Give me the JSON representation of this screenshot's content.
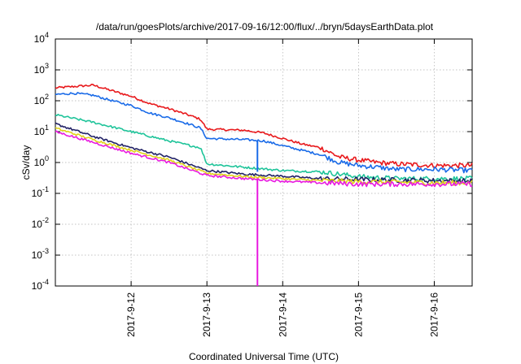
{
  "chart_data": {
    "type": "line",
    "title": "/data/run/goesPlots/archive/2017-09-16/12:00/flux/../bryn/5daysEarthData.plot",
    "xlabel": "Coordinated Universal Time (UTC)",
    "ylabel": "cSv/day",
    "yscale": "log",
    "ylim": [
      0.0001,
      10000
    ],
    "xlim": [
      "2017-09-11 00:00",
      "2017-09-16 12:00"
    ],
    "grid": true,
    "legend": "none",
    "y_ticks": [
      {
        "base": "10",
        "exp": "-4",
        "value": 0.0001
      },
      {
        "base": "10",
        "exp": "-3",
        "value": 0.001
      },
      {
        "base": "10",
        "exp": "-2",
        "value": 0.01
      },
      {
        "base": "10",
        "exp": "-1",
        "value": 0.1
      },
      {
        "base": "10",
        "exp": "0",
        "value": 1
      },
      {
        "base": "10",
        "exp": "1",
        "value": 10
      },
      {
        "base": "10",
        "exp": "2",
        "value": 100
      },
      {
        "base": "10",
        "exp": "3",
        "value": 1000
      },
      {
        "base": "10",
        "exp": "4",
        "value": 10000
      }
    ],
    "x_ticks": [
      {
        "label": "2017-9-12",
        "value": "2017-09-12 00:00"
      },
      {
        "label": "2017-9-13",
        "value": "2017-09-13 00:00"
      },
      {
        "label": "2017-9-14",
        "value": "2017-09-14 00:00"
      },
      {
        "label": "2017-9-15",
        "value": "2017-09-15 00:00"
      },
      {
        "label": "2017-9-16",
        "value": "2017-09-16 00:00"
      }
    ],
    "series": [
      {
        "color": "#e8191c",
        "x": [
          "2017-09-11 00:00",
          "2017-09-11 06:00",
          "2017-09-11 12:00",
          "2017-09-11 18:00",
          "2017-09-12 00:00",
          "2017-09-12 06:00",
          "2017-09-12 12:00",
          "2017-09-12 18:00",
          "2017-09-12 22:00",
          "2017-09-13 00:00",
          "2017-09-13 12:00",
          "2017-09-13 18:00",
          "2017-09-14 00:00",
          "2017-09-14 06:00",
          "2017-09-14 12:00",
          "2017-09-14 18:00",
          "2017-09-15 00:00",
          "2017-09-15 06:00",
          "2017-09-15 12:00",
          "2017-09-16 00:00",
          "2017-09-16 12:00"
        ],
        "y": [
          260,
          290,
          320,
          210,
          140,
          80,
          55,
          35,
          25,
          12,
          11,
          9,
          6,
          4,
          3,
          1.5,
          1.2,
          1.0,
          0.9,
          0.8,
          0.8
        ]
      },
      {
        "color": "#1a6be8",
        "x": [
          "2017-09-11 00:00",
          "2017-09-11 06:00",
          "2017-09-11 12:00",
          "2017-09-11 18:00",
          "2017-09-12 00:00",
          "2017-09-12 06:00",
          "2017-09-12 12:00",
          "2017-09-12 18:00",
          "2017-09-12 22:00",
          "2017-09-13 00:00",
          "2017-09-13 12:00",
          "2017-09-13 18:00",
          "2017-09-14 00:00",
          "2017-09-14 06:00",
          "2017-09-14 12:00",
          "2017-09-14 18:00",
          "2017-09-15 00:00",
          "2017-09-15 06:00",
          "2017-09-15 12:00",
          "2017-09-16 00:00",
          "2017-09-16 12:00"
        ],
        "y": [
          160,
          175,
          150,
          100,
          70,
          40,
          28,
          18,
          13,
          6,
          5.5,
          5,
          3.5,
          2.5,
          1.8,
          1.0,
          0.8,
          0.7,
          0.6,
          0.6,
          0.55
        ]
      },
      {
        "color": "#1fc49a",
        "x": [
          "2017-09-11 00:00",
          "2017-09-11 12:00",
          "2017-09-12 00:00",
          "2017-09-12 12:00",
          "2017-09-12 22:00",
          "2017-09-13 00:00",
          "2017-09-13 12:00",
          "2017-09-14 00:00",
          "2017-09-14 12:00",
          "2017-09-15 00:00",
          "2017-09-15 12:00",
          "2017-09-16 00:00",
          "2017-09-16 12:00"
        ],
        "y": [
          35,
          20,
          10,
          5,
          3,
          0.9,
          0.7,
          0.55,
          0.5,
          0.35,
          0.3,
          0.3,
          0.3
        ]
      },
      {
        "color": "#222266",
        "x": [
          "2017-09-11 00:00",
          "2017-09-11 12:00",
          "2017-09-12 00:00",
          "2017-09-12 12:00",
          "2017-09-13 00:00",
          "2017-09-13 12:00",
          "2017-09-14 00:00",
          "2017-09-14 12:00",
          "2017-09-15 00:00",
          "2017-09-16 00:00",
          "2017-09-16 12:00"
        ],
        "y": [
          18,
          7,
          3,
          1.5,
          0.55,
          0.42,
          0.36,
          0.3,
          0.28,
          0.26,
          0.25
        ]
      },
      {
        "color": "#e0d21a",
        "x": [
          "2017-09-11 00:00",
          "2017-09-11 12:00",
          "2017-09-12 00:00",
          "2017-09-12 12:00",
          "2017-09-13 00:00",
          "2017-09-13 12:00",
          "2017-09-14 00:00",
          "2017-09-14 12:00",
          "2017-09-15 00:00",
          "2017-09-16 00:00",
          "2017-09-16 12:00"
        ],
        "y": [
          13,
          5.5,
          2.5,
          1.2,
          0.45,
          0.35,
          0.3,
          0.26,
          0.24,
          0.22,
          0.22
        ]
      },
      {
        "color": "#e81ae0",
        "x": [
          "2017-09-11 00:00",
          "2017-09-11 12:00",
          "2017-09-12 00:00",
          "2017-09-12 12:00",
          "2017-09-13 00:00",
          "2017-09-13 12:00",
          "2017-09-14 00:00",
          "2017-09-14 12:00",
          "2017-09-15 00:00",
          "2017-09-16 00:00",
          "2017-09-16 12:00"
        ],
        "y": [
          10,
          4.5,
          2.0,
          1.0,
          0.38,
          0.3,
          0.25,
          0.22,
          0.2,
          0.2,
          0.2
        ]
      }
    ],
    "annotations": [
      {
        "type": "drop",
        "color": "#e81ae0",
        "x": "2017-09-13 16:00",
        "y_from": 0.3,
        "y_to": 0.0001
      },
      {
        "type": "drop",
        "color": "#1a6be8",
        "x": "2017-09-13 16:00",
        "y_from": 5,
        "y_to": 0.5
      }
    ]
  }
}
